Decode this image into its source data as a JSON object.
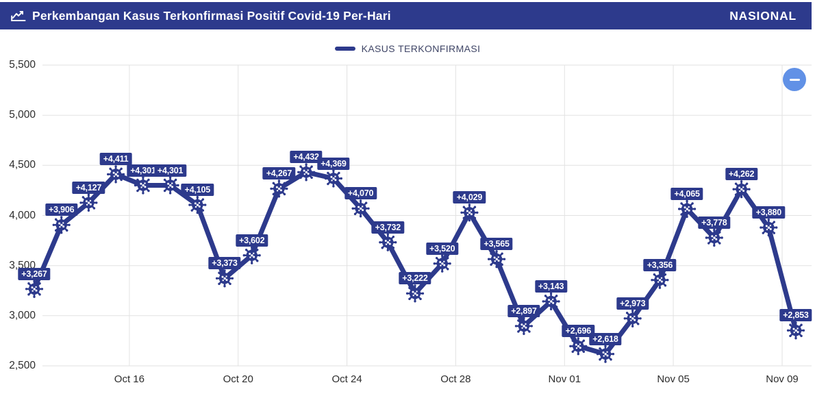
{
  "header": {
    "title": "Perkembangan Kasus Terkonfirmasi Positif Covid-19 Per-Hari",
    "region": "NASIONAL",
    "title_icon": "line-chart-icon"
  },
  "legend": {
    "label": "KASUS TERKONFIRMASI"
  },
  "controls": {
    "collapse_button_icon": "minus-icon",
    "collapse_button_color": "#6191e6"
  },
  "colors": {
    "primary": "#2d3a8c",
    "label_text": "#ffffff",
    "grid": "#e2e2e2",
    "axis_text": "#2d2d2d",
    "legend_text": "#3f4566"
  },
  "chart_data": {
    "type": "line",
    "title": "Perkembangan Kasus Terkonfirmasi Positif Covid-19 Per-Hari",
    "series_name": "KASUS TERKONFIRMASI",
    "marker": "virus-icon",
    "grid": true,
    "legend_position": "top-center",
    "ylim": [
      2500,
      5500
    ],
    "y_step": 500,
    "y_ticks": [
      "2,500",
      "3,000",
      "3,500",
      "4,000",
      "4,500",
      "5,000",
      "5,500"
    ],
    "x_ticks": [
      {
        "label": "Oct 16",
        "index": 4
      },
      {
        "label": "Oct 20",
        "index": 8
      },
      {
        "label": "Oct 24",
        "index": 12
      },
      {
        "label": "Oct 28",
        "index": 16
      },
      {
        "label": "Nov 01",
        "index": 20
      },
      {
        "label": "Nov 05",
        "index": 24
      },
      {
        "label": "Nov 09",
        "index": 28
      }
    ],
    "values": [
      3267,
      3906,
      4127,
      4411,
      4301,
      4301,
      4105,
      3373,
      3602,
      4267,
      4432,
      4369,
      4070,
      3732,
      3222,
      3520,
      4029,
      3565,
      2897,
      3143,
      2696,
      2618,
      2973,
      3356,
      4065,
      3778,
      4262,
      3880,
      2853
    ],
    "point_labels": [
      "+3,267",
      "+3,906",
      "+4,127",
      "+4,411",
      "+4,301",
      "+4,301",
      "+4,105",
      "+3,373",
      "+3,602",
      "+4,267",
      "+4,432",
      "+4,369",
      "+4,070",
      "+3,732",
      "+3,222",
      "+3,520",
      "+4,029",
      "+3,565",
      "+2,897",
      "+3,143",
      "+2,696",
      "+2,618",
      "+2,973",
      "+3,356",
      "+4,065",
      "+3,778",
      "+4,262",
      "+3,880",
      "+2,853"
    ],
    "first_point_clipped_at_left_edge": true
  }
}
